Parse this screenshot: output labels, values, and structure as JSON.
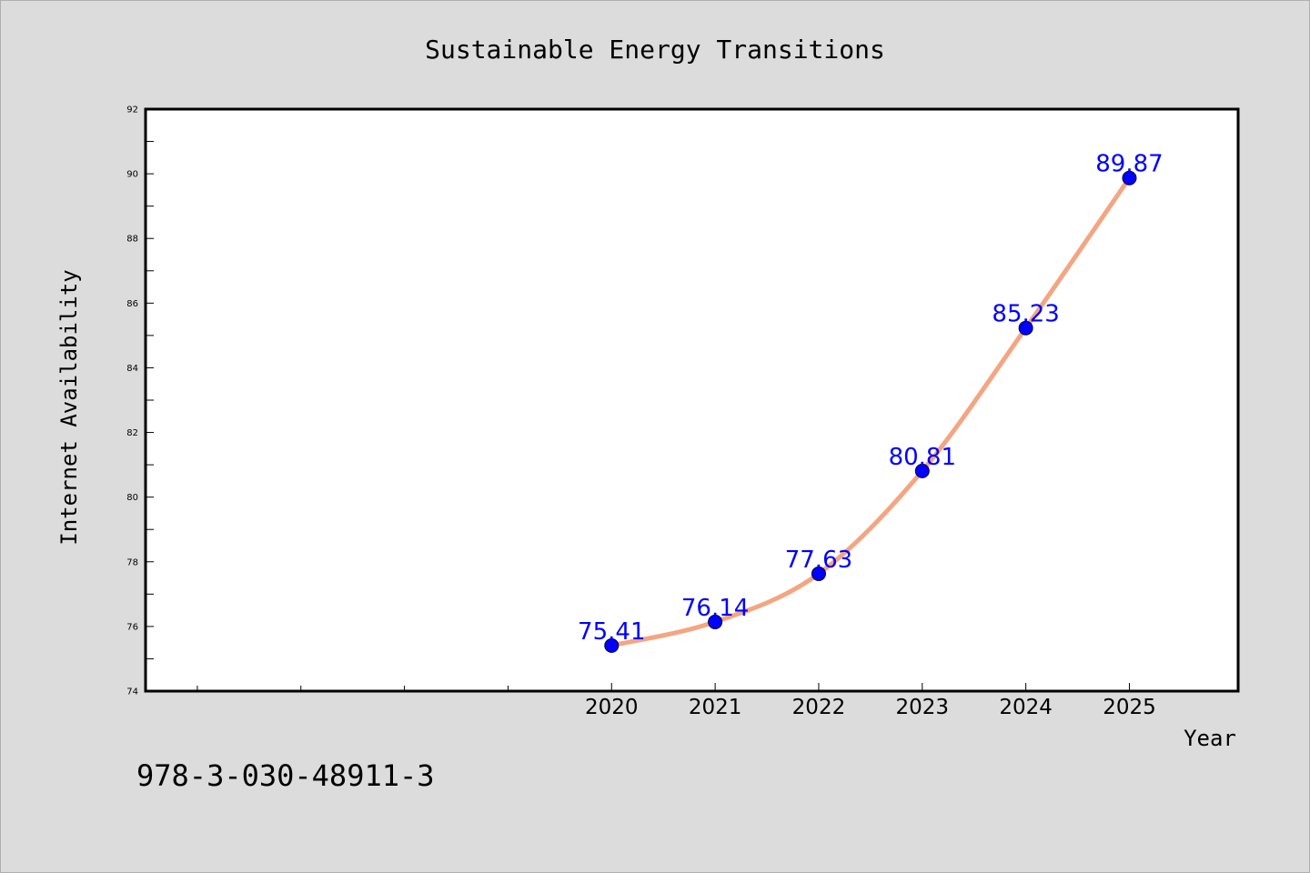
{
  "chart_data": {
    "type": "line",
    "title": "Sustainable Energy Transitions",
    "xlabel": "Year",
    "ylabel": "Internet Availability",
    "x": [
      2020,
      2021,
      2022,
      2023,
      2024,
      2025
    ],
    "series": [
      {
        "values": [
          75.41,
          76.14,
          77.63,
          80.81,
          85.23,
          89.87
        ],
        "color": "#f4a582",
        "marker_color": "#0000ff"
      }
    ],
    "data_labels": [
      "75.41",
      "76.14",
      "77.63",
      "80.81",
      "85.23",
      "89.87"
    ],
    "xlim": [
      2015.5,
      2026.05
    ],
    "ylim": [
      74,
      92
    ],
    "yticks": [
      74,
      76,
      78,
      80,
      82,
      84,
      86,
      88,
      90,
      92
    ],
    "xticks_labeled": [
      2020,
      2021,
      2022,
      2023,
      2024,
      2025
    ],
    "xticks_minor": [
      2016,
      2017,
      2018,
      2019
    ],
    "grid": false,
    "legend": "none"
  },
  "footer": {
    "isbn": "978-3-030-48911-3"
  }
}
